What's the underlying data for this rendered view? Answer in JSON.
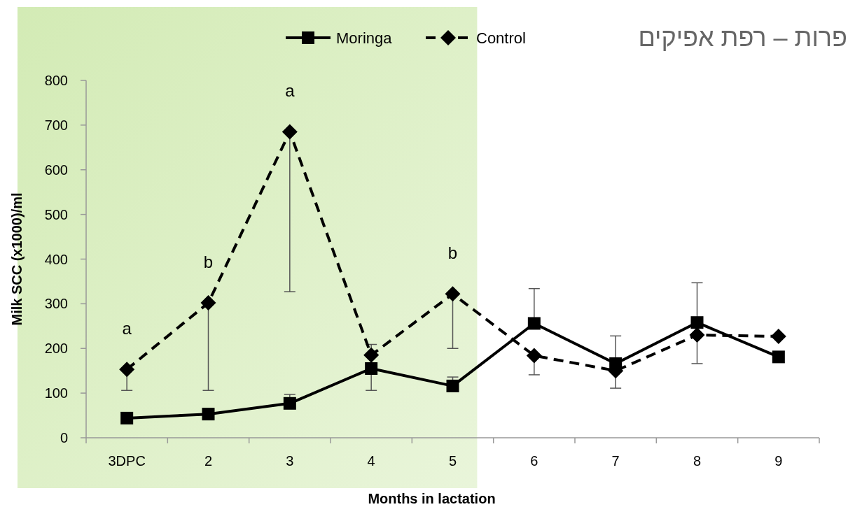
{
  "chart_data": {
    "type": "line",
    "title": "פרות – רפת אפיקים",
    "xlabel": "Months in lactation",
    "ylabel": "Milk SCC (x1000)/ml",
    "categories": [
      "3DPC",
      "2",
      "3",
      "4",
      "5",
      "6",
      "7",
      "8",
      "9"
    ],
    "series": [
      {
        "name": "Moringa",
        "color": "#000000",
        "marker": "square",
        "line_style": "solid",
        "values": [
          44,
          53,
          77,
          155,
          116,
          256,
          166,
          258,
          181
        ],
        "errors": [
          null,
          null,
          [
            77,
            97
          ],
          [
            106,
            155
          ],
          [
            116,
            136
          ],
          [
            256,
            334
          ],
          [
            166,
            228
          ],
          [
            258,
            347
          ],
          null
        ]
      },
      {
        "name": "Control",
        "color": "#000000",
        "marker": "diamond",
        "line_style": "dashed",
        "values": [
          153,
          302,
          685,
          185,
          322,
          184,
          150,
          230,
          227
        ],
        "errors": [
          [
            106,
            153
          ],
          [
            106,
            302
          ],
          [
            327,
            685
          ],
          [
            185,
            209
          ],
          [
            200,
            322
          ],
          [
            141,
            184
          ],
          [
            111,
            150
          ],
          [
            166,
            230
          ],
          null
        ]
      }
    ],
    "ylim": [
      0,
      800
    ],
    "yticks": [
      0,
      100,
      200,
      300,
      400,
      500,
      600,
      700,
      800
    ],
    "legend": "top",
    "bands": [
      {
        "axis": "x",
        "from": "3DPC",
        "to": "5",
        "color": "#d3ebb5"
      }
    ],
    "annotations": [
      {
        "text": "a",
        "x": "3DPC",
        "y": 153
      },
      {
        "text": "b",
        "x": "2",
        "y": 302
      },
      {
        "text": "a",
        "x": "3",
        "y": 685
      },
      {
        "text": "b",
        "x": "5",
        "y": 322
      }
    ]
  }
}
